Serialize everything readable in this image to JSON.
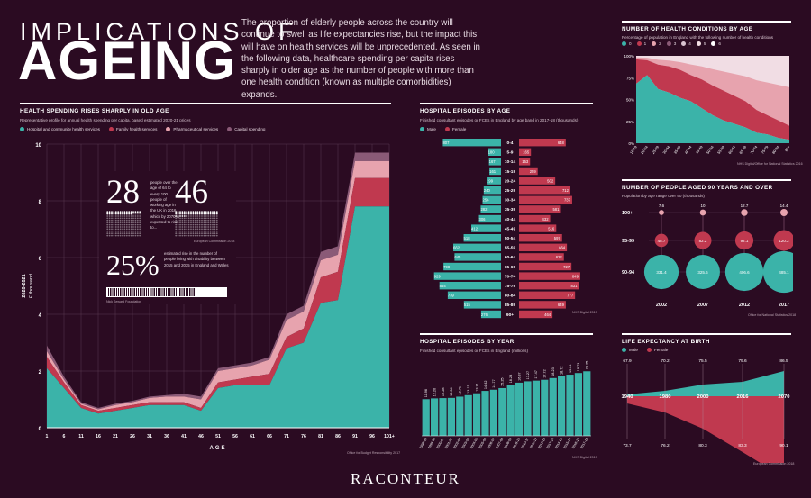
{
  "header": {
    "title_line1": "IMPLICATIONS OF",
    "title_line2": "AGEING",
    "intro": "The proportion of elderly people across the country will continue to swell as life expectancies rise, but the impact this will have on health services will be unprecedented. As seen in the following data, healthcare spending per capita rises sharply in older age as the number of people with more than one health condition (known as multiple comorbidities) expands."
  },
  "spending": {
    "title": "HEALTH SPENDING RISES SHARPLY IN OLD AGE",
    "subtitle": "Representative profile for annual health spending per capita, based estimated 2020-21 prices",
    "ylabel_top": "2020-2021",
    "ylabel_unit": "£ thousand",
    "xlabel": "AGE",
    "source": "Office for Budget Responsibility 2017",
    "legend": [
      "Hospital and community health services",
      "Family health services",
      "Pharmaceutical services",
      "Capital spending"
    ],
    "callout": {
      "num1": "28",
      "num2": "46",
      "text1": "people over the age of 64 to every 100 people of working age in the UK in 2016, which by 2070 is expected to rise to...",
      "src1": "European Commission 2018",
      "pct": "25%",
      "text2": "estimated rise in the number of people living with disability between 2015 and 2035 in England and Wales",
      "src2": "Nick Seward Foundation"
    }
  },
  "episodes_age": {
    "title": "HOSPITAL EPISODES BY AGE",
    "subtitle": "Finished consultant episodes or FCEs in England by age band in 2017-18 (thousands)",
    "legend": [
      "Male",
      "Female"
    ],
    "source": "NHS Digital 2019"
  },
  "episodes_year": {
    "title": "HOSPITAL EPISODES BY YEAR",
    "subtitle": "Finished consultant episodes or FCEs in England (millions)",
    "source": "NHS Digital 2019"
  },
  "conditions": {
    "title": "NUMBER OF HEALTH CONDITIONS BY AGE",
    "subtitle": "Percentage of population in England with the following number of health conditions",
    "legend": [
      "0",
      "1",
      "2",
      "3",
      "4",
      "5",
      "6"
    ],
    "source": "NHS Digital/Office for National Statistics 2016"
  },
  "ninety": {
    "title": "NUMBER OF PEOPLE AGED 90 YEARS AND OVER",
    "subtitle": "Population by age range over 90 (thousands)",
    "source": "Office for National Statistics 2018"
  },
  "life": {
    "title": "LIFE EXPECTANCY AT BIRTH",
    "legend": [
      "Male",
      "Female"
    ],
    "source": "European Commission 2018"
  },
  "logo": "RACONTEUR",
  "colors": {
    "teal": "#3bb3a9",
    "red": "#c0394f",
    "pink": "#e7a3ae",
    "mauve": "#8a5a77",
    "bg": "#2b0b22"
  },
  "chart_data": [
    {
      "id": "spending",
      "type": "area",
      "x": [
        1,
        6,
        11,
        16,
        21,
        26,
        31,
        36,
        41,
        46,
        51,
        56,
        61,
        66,
        71,
        76,
        81,
        86,
        91,
        96,
        101
      ],
      "x_tick_labels": [
        "1",
        "6",
        "11",
        "16",
        "21",
        "26",
        "31",
        "36",
        "41",
        "46",
        "51",
        "56",
        "61",
        "66",
        "71",
        "76",
        "81",
        "86",
        "91",
        "96",
        "101+"
      ],
      "ylim": [
        0,
        10
      ],
      "y_ticks": [
        0,
        2,
        4,
        6,
        8,
        10
      ],
      "series": [
        {
          "name": "Hospital and community health services",
          "values": [
            2.1,
            1.4,
            0.7,
            0.5,
            0.6,
            0.7,
            0.8,
            0.8,
            0.8,
            0.6,
            1.4,
            1.5,
            1.5,
            1.5,
            2.8,
            3.0,
            4.4,
            4.5,
            7.8,
            7.8,
            7.8
          ]
        },
        {
          "name": "Family health services",
          "values": [
            0.4,
            0.2,
            0.1,
            0.1,
            0.1,
            0.1,
            0.1,
            0.1,
            0.1,
            0.1,
            0.2,
            0.2,
            0.3,
            0.4,
            0.4,
            0.5,
            0.9,
            1.0,
            1.0,
            1.0,
            1.0
          ]
        },
        {
          "name": "Pharmaceutical services",
          "values": [
            0.2,
            0.1,
            0.05,
            0.05,
            0.1,
            0.1,
            0.15,
            0.2,
            0.2,
            0.3,
            0.4,
            0.4,
            0.4,
            0.5,
            0.6,
            0.6,
            0.6,
            0.6,
            0.6,
            0.6,
            0.6
          ]
        },
        {
          "name": "Capital spending",
          "values": [
            0.2,
            0.1,
            0.05,
            0.05,
            0.05,
            0.05,
            0.05,
            0.05,
            0.1,
            0.1,
            0.1,
            0.1,
            0.1,
            0.1,
            0.2,
            0.2,
            0.3,
            0.3,
            0.3,
            0.3,
            0.3
          ]
        }
      ]
    },
    {
      "id": "episodes_age",
      "type": "bar",
      "categories": [
        "0-4",
        "5-9",
        "10-14",
        "15-19",
        "20-24",
        "25-29",
        "30-34",
        "35-39",
        "40-44",
        "45-49",
        "50-54",
        "55-59",
        "60-64",
        "65-69",
        "70-74",
        "75-79",
        "80-84",
        "85-89",
        "90+"
      ],
      "series": [
        {
          "name": "Male",
          "values": [
            807,
            180,
            167,
            161,
            199,
            240,
            256,
            282,
            306,
            412,
            518,
            662,
            645,
            798,
            929,
            854,
            739,
            515,
            276
          ]
        },
        {
          "name": "Female",
          "values": [
            648,
            165,
            153,
            259,
            502,
            712,
            737,
            581,
            432,
            516,
            597,
            664,
            622,
            727,
            849,
            831,
            777,
            649,
            464
          ]
        }
      ]
    },
    {
      "id": "episodes_year",
      "type": "bar",
      "categories": [
        "1998-99",
        "1999-00",
        "2000-01",
        "2001-02",
        "2002-03",
        "2003-04",
        "2004-05",
        "2005-06",
        "2006-07",
        "2007-08",
        "2008-09",
        "2009-10",
        "2010-11",
        "2011-12",
        "2012-13",
        "2013-14",
        "2014-15",
        "2015-16",
        "2016-17",
        "2017-18"
      ],
      "values": [
        11.96,
        12.2,
        12.28,
        12.34,
        12.71,
        13.15,
        13.71,
        14.42,
        14.77,
        15.25,
        16.23,
        16.87,
        17.27,
        17.47,
        17.72,
        18.23,
        18.72,
        19.24,
        19.73,
        20.25
      ]
    },
    {
      "id": "conditions",
      "type": "area",
      "x_tick_labels": [
        "16-19",
        "20-24",
        "25-29",
        "30-34",
        "35-39",
        "40-44",
        "45-49",
        "50-54",
        "55-59",
        "60-64",
        "65-69",
        "70-74",
        "75-79",
        "80-84",
        "85+"
      ],
      "y_tick_labels": [
        "0%",
        "25%",
        "50%",
        "75%",
        "100%"
      ],
      "series": [
        {
          "name": "0",
          "values": [
            68,
            78,
            62,
            58,
            52,
            48,
            40,
            32,
            26,
            22,
            18,
            12,
            10,
            6,
            4
          ]
        },
        {
          "name": "1",
          "values": [
            28,
            17,
            28,
            30,
            32,
            30,
            33,
            34,
            34,
            32,
            30,
            26,
            22,
            20,
            16
          ]
        }
      ]
    },
    {
      "id": "ninety",
      "type": "bubble",
      "x": [
        "2002",
        "2007",
        "2012",
        "2017"
      ],
      "categories": [
        "100+",
        "95-99",
        "90-94"
      ],
      "series": [
        {
          "name": "100+",
          "values": [
            7.6,
            10,
            12.7,
            14.4
          ]
        },
        {
          "name": "95-99",
          "values": [
            48.7,
            82.2,
            92.1,
            120.2
          ]
        },
        {
          "name": "90-94",
          "values": [
            331.4,
            325.6,
            406.6,
            485.1
          ]
        }
      ]
    },
    {
      "id": "life",
      "type": "area",
      "x": [
        1940,
        1980,
        2000,
        2016,
        2070
      ],
      "series": [
        {
          "name": "Male",
          "values": [
            67.9,
            70.2,
            75.5,
            79.6,
            86.5
          ]
        },
        {
          "name": "Female",
          "values": [
            73.7,
            76.2,
            80.3,
            83.3,
            90.1
          ]
        }
      ]
    }
  ]
}
